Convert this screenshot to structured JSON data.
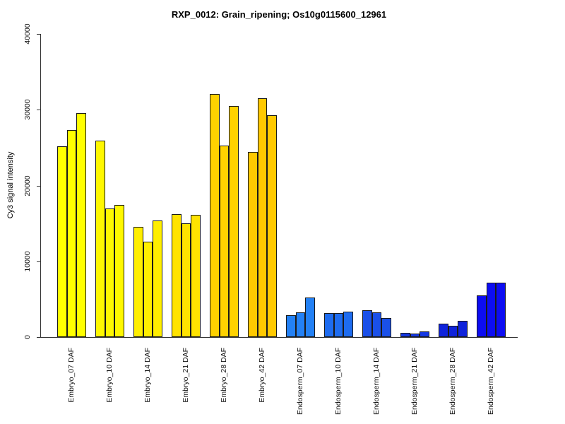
{
  "chart_data": {
    "type": "bar",
    "title": "RXP_0012: Grain_ripening; Os10g0115600_12961",
    "ylabel": "Cy3 signal intensity",
    "xlabel": "",
    "ylim": [
      0,
      40000
    ],
    "yticks": [
      0,
      10000,
      20000,
      30000,
      40000
    ],
    "ytick_labels": [
      "0",
      "10000",
      "20000",
      "30000",
      "40000"
    ],
    "grid": false,
    "legend_position": "none",
    "bars_per_group": 3,
    "bar_border_color": "#1a1a1a",
    "axis_color": "#333333",
    "groups": [
      {
        "label": "Embryo_07 DAF",
        "color": "#FFFF00",
        "values": [
          25200,
          27300,
          29600
        ]
      },
      {
        "label": "Embryo_10 DAF",
        "color": "#FFF800",
        "values": [
          25900,
          17000,
          17400
        ]
      },
      {
        "label": "Embryo_14 DAF",
        "color": "#FFEE00",
        "values": [
          14500,
          12600,
          15400
        ]
      },
      {
        "label": "Embryo_21 DAF",
        "color": "#FFE300",
        "values": [
          16200,
          15000,
          16100
        ]
      },
      {
        "label": "Embryo_28 DAF",
        "color": "#FFD200",
        "values": [
          32100,
          25300,
          30500
        ]
      },
      {
        "label": "Embryo_42 DAF",
        "color": "#FFC900",
        "values": [
          24400,
          31500,
          29300
        ]
      },
      {
        "label": "Endosperm_07 DAF",
        "color": "#2381F5",
        "values": [
          2900,
          3300,
          5250
        ]
      },
      {
        "label": "Endosperm_10 DAF",
        "color": "#1E6CF0",
        "values": [
          3150,
          3150,
          3400
        ]
      },
      {
        "label": "Endosperm_14 DAF",
        "color": "#1A50E9",
        "values": [
          3550,
          3250,
          2500
        ]
      },
      {
        "label": "Endosperm_21 DAF",
        "color": "#1437E2",
        "values": [
          520,
          480,
          700
        ]
      },
      {
        "label": "Endosperm_28 DAF",
        "color": "#0F23DB",
        "values": [
          1750,
          1450,
          2100
        ]
      },
      {
        "label": "Endosperm_42 DAF",
        "color": "#0D0DF2",
        "values": [
          5500,
          7200,
          7150
        ]
      }
    ]
  }
}
